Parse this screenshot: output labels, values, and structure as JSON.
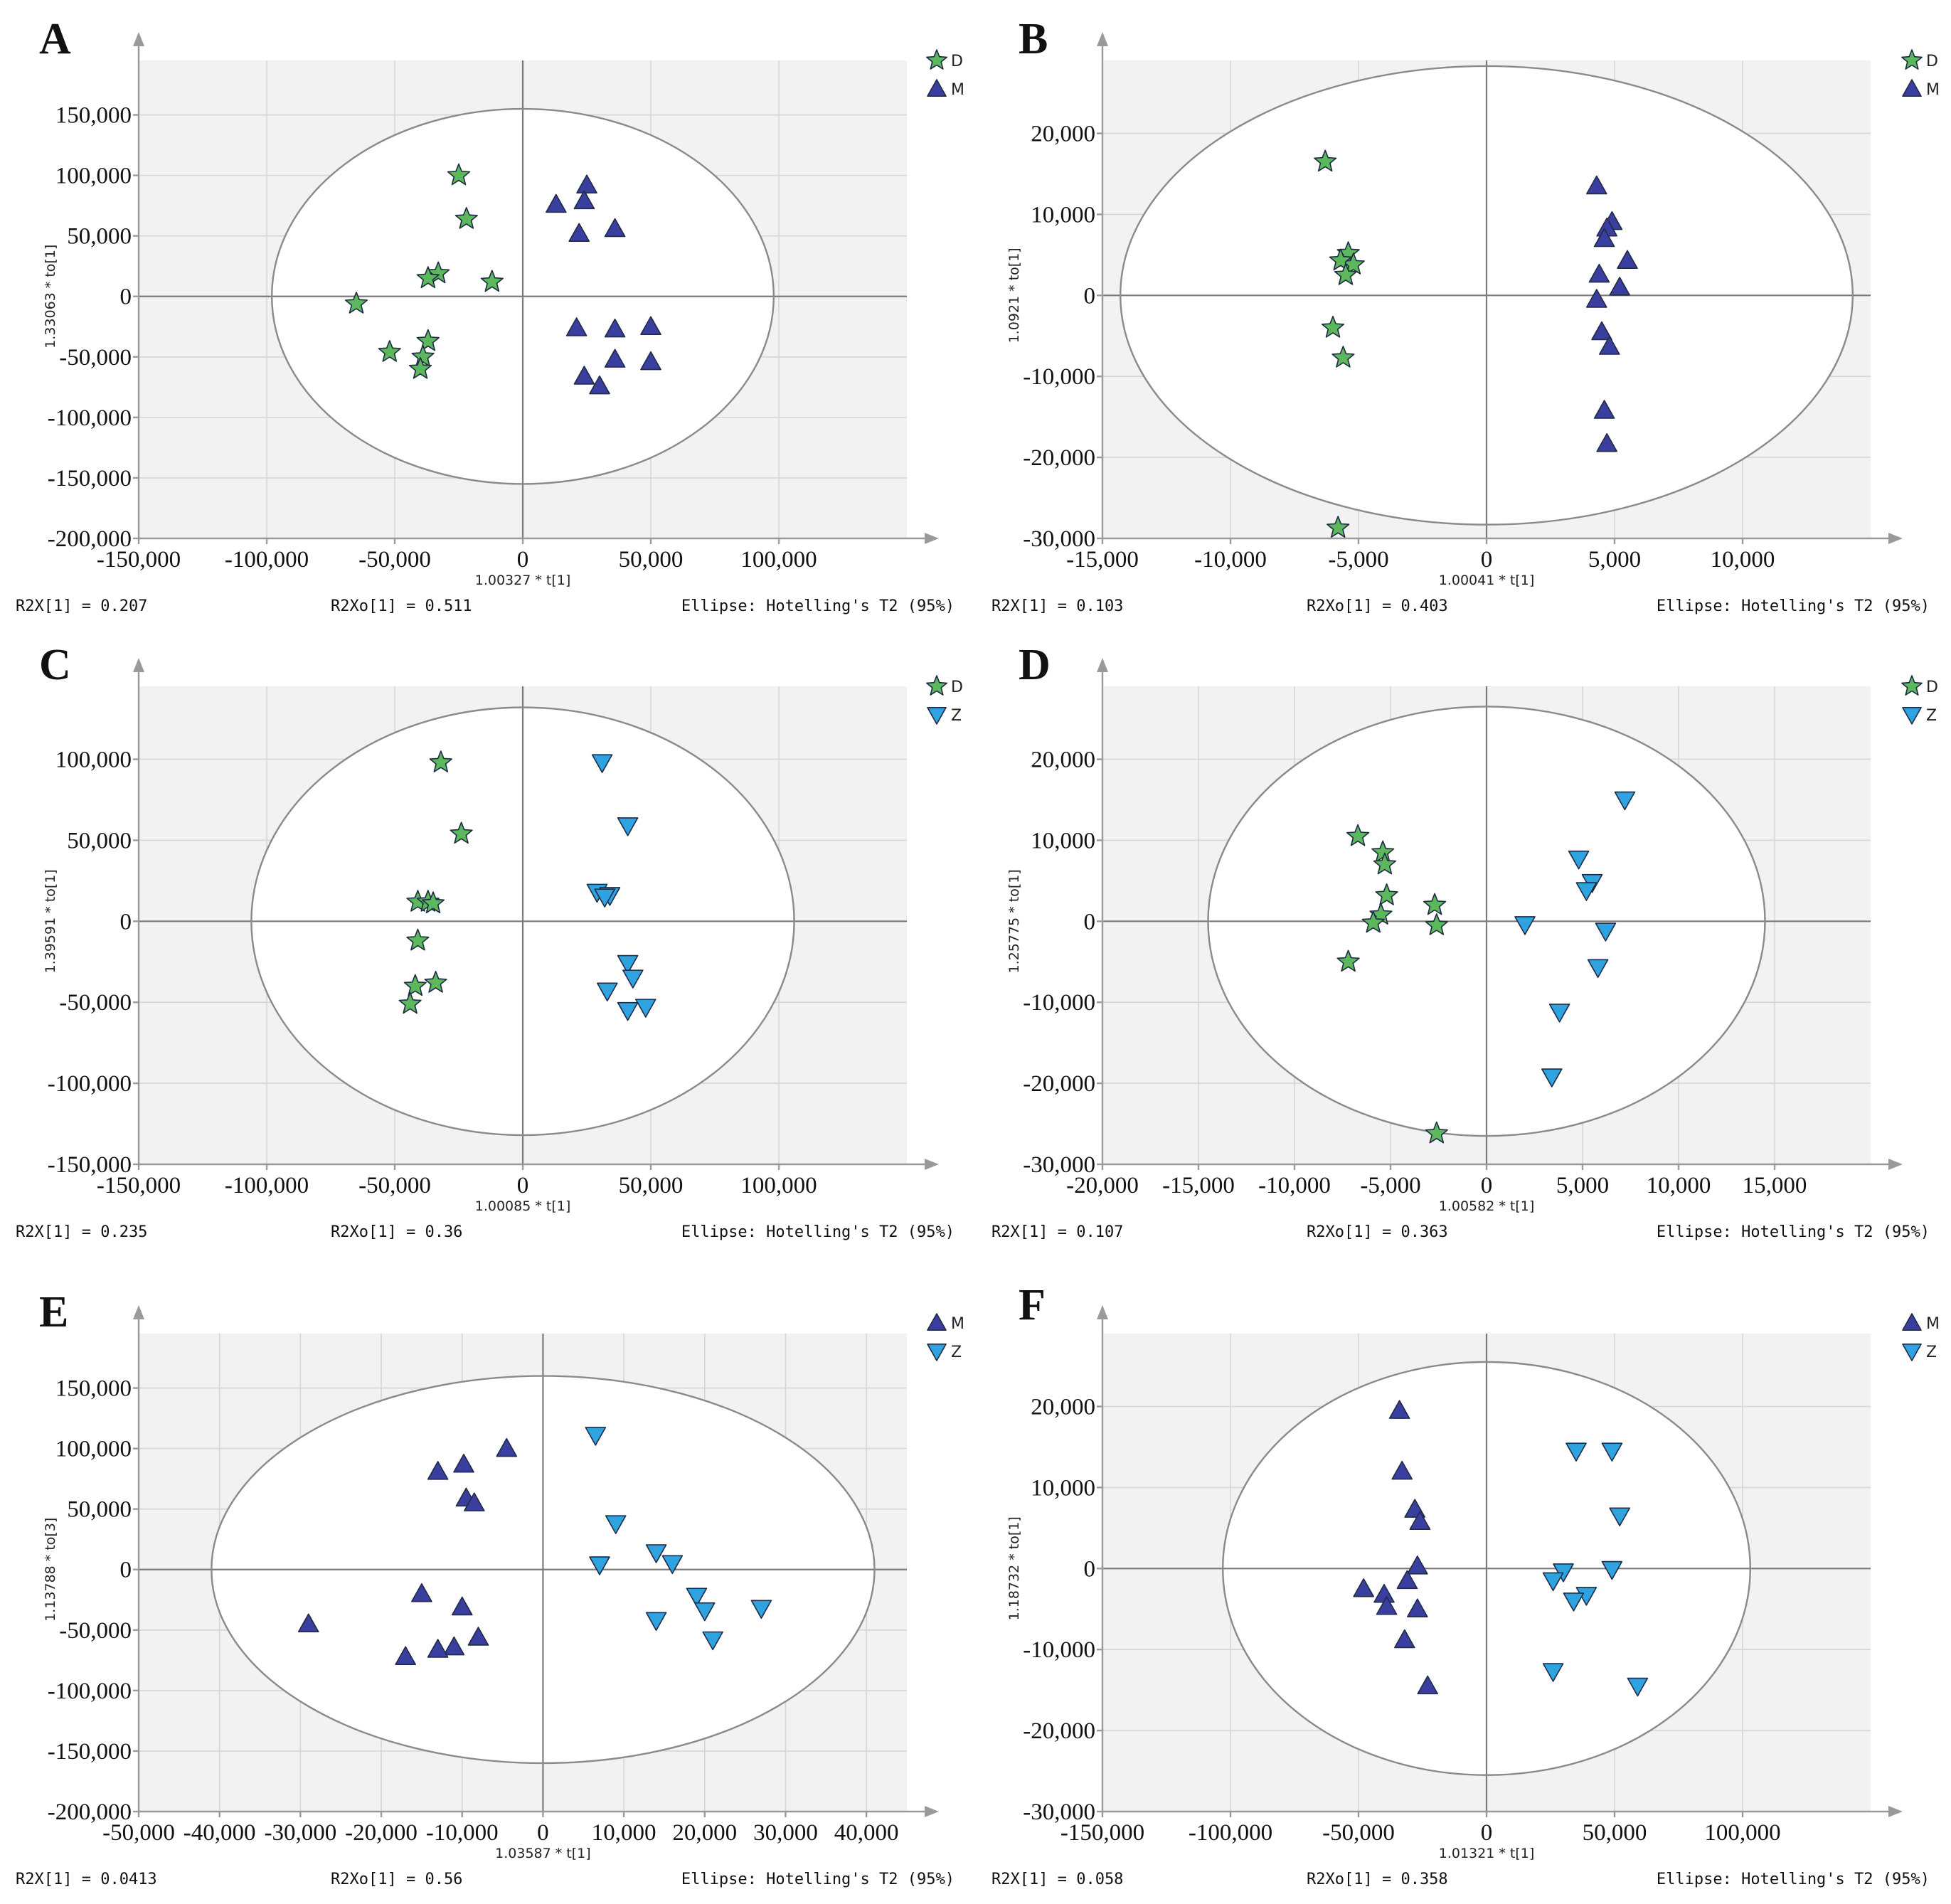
{
  "colors": {
    "D": "#5cb85c",
    "M": "#3a3f9f",
    "Z": "#2fa3e0"
  },
  "chart_data": [
    {
      "panel": "A",
      "type": "scatter",
      "xlabel": "1.00327 * t[1]",
      "ylabel": "1.33063 * to[1]",
      "xlim": [
        -150000,
        150000
      ],
      "ylim": [
        -200000,
        195000
      ],
      "xticks": [
        -150000,
        -100000,
        -50000,
        0,
        50000,
        100000
      ],
      "yticks": [
        -200000,
        -150000,
        -100000,
        -50000,
        0,
        50000,
        100000,
        150000
      ],
      "xtick_labels": [
        "-150,000",
        "-100,000",
        "-50,000",
        "0",
        "50,000",
        "100,000"
      ],
      "ytick_labels": [
        "-200,000",
        "-150,000",
        "-100,000",
        "-50,000",
        "0",
        "50,000",
        "100,000",
        "150,000"
      ],
      "ellipse": {
        "rx": 98000,
        "ry": 155000
      },
      "legend": [
        {
          "label": "D",
          "group": "D"
        },
        {
          "label": "M",
          "group": "M"
        }
      ],
      "series": [
        {
          "name": "D",
          "group": "D",
          "points": [
            [
              -25000,
              100000
            ],
            [
              -22000,
              64000
            ],
            [
              -33000,
              19000
            ],
            [
              -37000,
              15000
            ],
            [
              -12000,
              12000
            ],
            [
              -65000,
              -6000
            ],
            [
              -37000,
              -37000
            ],
            [
              -52000,
              -46000
            ],
            [
              -39000,
              -50000
            ],
            [
              -40000,
              -60000
            ]
          ]
        },
        {
          "name": "M",
          "group": "M",
          "points": [
            [
              25000,
              92000
            ],
            [
              24000,
              79000
            ],
            [
              13000,
              76000
            ],
            [
              36000,
              56000
            ],
            [
              22000,
              52000
            ],
            [
              21000,
              -26000
            ],
            [
              36000,
              -27000
            ],
            [
              50000,
              -25000
            ],
            [
              36000,
              -52000
            ],
            [
              50000,
              -54000
            ],
            [
              24000,
              -66000
            ],
            [
              30000,
              -74000
            ]
          ]
        }
      ],
      "footer": {
        "r2x": "R2X[1] = 0.207",
        "r2xo": "R2Xo[1] = 0.511",
        "ellipse": "Ellipse: Hotelling's T2 (95%)"
      }
    },
    {
      "panel": "B",
      "type": "scatter",
      "xlabel": "1.00041 * t[1]",
      "ylabel": "1.0921 * to[1]",
      "xlim": [
        -15000,
        15000
      ],
      "ylim": [
        -30000,
        29000
      ],
      "xticks": [
        -15000,
        -10000,
        -5000,
        0,
        5000,
        10000
      ],
      "yticks": [
        -30000,
        -20000,
        -10000,
        0,
        10000,
        20000
      ],
      "xtick_labels": [
        "-15,000",
        "-10,000",
        "-5,000",
        "0",
        "5,000",
        "10,000"
      ],
      "ytick_labels": [
        "-30,000",
        "-20,000",
        "-10,000",
        "0",
        "10,000",
        "20,000"
      ],
      "ellipse": {
        "rx": 14300,
        "ry": 28300
      },
      "legend": [
        {
          "label": "D",
          "group": "D"
        },
        {
          "label": "M",
          "group": "M"
        }
      ],
      "series": [
        {
          "name": "D",
          "group": "D",
          "points": [
            [
              -6300,
              16500
            ],
            [
              -5400,
              5200
            ],
            [
              -5200,
              3800
            ],
            [
              -5700,
              4300
            ],
            [
              -5500,
              2500
            ],
            [
              -6000,
              -4000
            ],
            [
              -5600,
              -7700
            ],
            [
              -5800,
              -28700
            ]
          ]
        },
        {
          "name": "M",
          "group": "M",
          "points": [
            [
              4300,
              13500
            ],
            [
              4900,
              9100
            ],
            [
              4700,
              8300
            ],
            [
              4600,
              7000
            ],
            [
              5500,
              4300
            ],
            [
              4400,
              2600
            ],
            [
              5200,
              1000
            ],
            [
              4300,
              -500
            ],
            [
              4500,
              -4500
            ],
            [
              4800,
              -6300
            ],
            [
              4600,
              -14200
            ],
            [
              4700,
              -18300
            ]
          ]
        }
      ],
      "footer": {
        "r2x": "R2X[1] = 0.103",
        "r2xo": "R2Xo[1] = 0.403",
        "ellipse": "Ellipse: Hotelling's T2 (95%)"
      }
    },
    {
      "panel": "C",
      "type": "scatter",
      "xlabel": "1.00085 * t[1]",
      "ylabel": "1.39591 * to[1]",
      "xlim": [
        -150000,
        150000
      ],
      "ylim": [
        -150000,
        145000
      ],
      "xticks": [
        -150000,
        -100000,
        -50000,
        0,
        50000,
        100000
      ],
      "yticks": [
        -150000,
        -100000,
        -50000,
        0,
        50000,
        100000
      ],
      "xtick_labels": [
        "-150,000",
        "-100,000",
        "-50,000",
        "0",
        "50,000",
        "100,000"
      ],
      "ytick_labels": [
        "-150,000",
        "-100,000",
        "-50,000",
        "0",
        "50,000",
        "100,000"
      ],
      "ellipse": {
        "rx": 106000,
        "ry": 132000
      },
      "legend": [
        {
          "label": "D",
          "group": "D"
        },
        {
          "label": "Z",
          "group": "Z"
        }
      ],
      "series": [
        {
          "name": "D",
          "group": "D",
          "points": [
            [
              -32000,
              98000
            ],
            [
              -24000,
              54000
            ],
            [
              -41000,
              12000
            ],
            [
              -37000,
              12000
            ],
            [
              -35000,
              11000
            ],
            [
              -41000,
              -12000
            ],
            [
              -34000,
              -38000
            ],
            [
              -42000,
              -40000
            ],
            [
              -44000,
              -51000
            ]
          ]
        },
        {
          "name": "Z",
          "group": "Z",
          "points": [
            [
              31000,
              98000
            ],
            [
              41000,
              59000
            ],
            [
              29000,
              18000
            ],
            [
              34000,
              16000
            ],
            [
              32000,
              15000
            ],
            [
              41000,
              -26000
            ],
            [
              43000,
              -35000
            ],
            [
              33000,
              -43000
            ],
            [
              48000,
              -53000
            ],
            [
              41000,
              -55000
            ]
          ]
        }
      ],
      "footer": {
        "r2x": "R2X[1] = 0.235",
        "r2xo": "R2Xo[1] = 0.36",
        "ellipse": "Ellipse: Hotelling's T2 (95%)"
      }
    },
    {
      "panel": "D",
      "type": "scatter",
      "xlabel": "1.00582 * t[1]",
      "ylabel": "1.25775 * to[1]",
      "xlim": [
        -20000,
        20000
      ],
      "ylim": [
        -30000,
        29000
      ],
      "xticks": [
        -20000,
        -15000,
        -10000,
        -5000,
        0,
        5000,
        10000,
        15000
      ],
      "yticks": [
        -30000,
        -20000,
        -10000,
        0,
        10000,
        20000
      ],
      "xtick_labels": [
        "-20,000",
        "-15,000",
        "-10,000",
        "-5,000",
        "0",
        "5,000",
        "10,000",
        "15,000"
      ],
      "ytick_labels": [
        "-30,000",
        "-20,000",
        "-10,000",
        "0",
        "10,000",
        "20,000"
      ],
      "ellipse": {
        "rx": 14500,
        "ry": 26500
      },
      "legend": [
        {
          "label": "D",
          "group": "D"
        },
        {
          "label": "Z",
          "group": "Z"
        }
      ],
      "series": [
        {
          "name": "D",
          "group": "D",
          "points": [
            [
              -6700,
              10500
            ],
            [
              -5400,
              8500
            ],
            [
              -5300,
              7000
            ],
            [
              -5200,
              3200
            ],
            [
              -2700,
              2000
            ],
            [
              -5500,
              800
            ],
            [
              -5900,
              -200
            ],
            [
              -2600,
              -500
            ],
            [
              -7200,
              -5000
            ],
            [
              -2600,
              -26200
            ]
          ]
        },
        {
          "name": "Z",
          "group": "Z",
          "points": [
            [
              7200,
              15000
            ],
            [
              4800,
              7700
            ],
            [
              5500,
              4800
            ],
            [
              5200,
              3800
            ],
            [
              2000,
              -400
            ],
            [
              6200,
              -1200
            ],
            [
              5800,
              -5700
            ],
            [
              3800,
              -11200
            ],
            [
              3400,
              -19200
            ]
          ]
        }
      ],
      "footer": {
        "r2x": "R2X[1] = 0.107",
        "r2xo": "R2Xo[1] = 0.363",
        "ellipse": "Ellipse: Hotelling's T2 (95%)"
      }
    },
    {
      "panel": "E",
      "type": "scatter",
      "xlabel": "1.03587 * t[1]",
      "ylabel": "1.13788 * to[3]",
      "xlim": [
        -50000,
        45000
      ],
      "ylim": [
        -200000,
        195000
      ],
      "xticks": [
        -50000,
        -40000,
        -30000,
        -20000,
        -10000,
        0,
        10000,
        20000,
        30000,
        40000
      ],
      "yticks": [
        -200000,
        -150000,
        -100000,
        -50000,
        0,
        50000,
        100000,
        150000
      ],
      "xtick_labels": [
        "-50,000",
        "-40,000",
        "-30,000",
        "-20,000",
        "-10,000",
        "0",
        "10,000",
        "20,000",
        "30,000",
        "40,000"
      ],
      "ytick_labels": [
        "-200,000",
        "-150,000",
        "-100,000",
        "-50,000",
        "0",
        "50,000",
        "100,000",
        "150,000"
      ],
      "ellipse": {
        "rx": 41000,
        "ry": 160000
      },
      "legend": [
        {
          "label": "M",
          "group": "M"
        },
        {
          "label": "Z",
          "group": "Z"
        }
      ],
      "series": [
        {
          "name": "M",
          "group": "M",
          "points": [
            [
              -4500,
              100000
            ],
            [
              -9800,
              87000
            ],
            [
              -13000,
              81000
            ],
            [
              -9500,
              59000
            ],
            [
              -8500,
              55000
            ],
            [
              -15000,
              -20000
            ],
            [
              -10000,
              -31000
            ],
            [
              -29000,
              -45000
            ],
            [
              -8000,
              -56000
            ],
            [
              -11000,
              -64000
            ],
            [
              -13000,
              -66000
            ],
            [
              -17000,
              -72000
            ]
          ]
        },
        {
          "name": "Z",
          "group": "Z",
          "points": [
            [
              6500,
              111000
            ],
            [
              9000,
              38000
            ],
            [
              14000,
              14000
            ],
            [
              16000,
              5000
            ],
            [
              7000,
              4000
            ],
            [
              19000,
              -22000
            ],
            [
              20000,
              -34000
            ],
            [
              27000,
              -32000
            ],
            [
              14000,
              -42000
            ],
            [
              21000,
              -58000
            ]
          ]
        }
      ],
      "footer": {
        "r2x": "R2X[1] = 0.0413",
        "r2xo": "R2Xo[1] = 0.56",
        "ellipse": "Ellipse: Hotelling's T2 (95%)"
      }
    },
    {
      "panel": "F",
      "type": "scatter",
      "xlabel": "1.01321 * t[1]",
      "ylabel": "1.18732 * to[1]",
      "xlim": [
        -150000,
        150000
      ],
      "ylim": [
        -30000,
        29000
      ],
      "xticks": [
        -150000,
        -100000,
        -50000,
        0,
        50000,
        100000
      ],
      "yticks": [
        -30000,
        -20000,
        -10000,
        0,
        10000,
        20000
      ],
      "xtick_labels": [
        "-150,000",
        "-100,000",
        "-50,000",
        "0",
        "50,000",
        "100,000"
      ],
      "ytick_labels": [
        "-30,000",
        "-20,000",
        "-10,000",
        "0",
        "10,000",
        "20,000"
      ],
      "ellipse": {
        "rx": 103000,
        "ry": 25500
      },
      "legend": [
        {
          "label": "M",
          "group": "M"
        },
        {
          "label": "Z",
          "group": "Z"
        }
      ],
      "series": [
        {
          "name": "M",
          "group": "M",
          "points": [
            [
              -34000,
              19500
            ],
            [
              -33000,
              12000
            ],
            [
              -28000,
              7300
            ],
            [
              -26000,
              5800
            ],
            [
              -27000,
              300
            ],
            [
              -31000,
              -1500
            ],
            [
              -48000,
              -2500
            ],
            [
              -40000,
              -3200
            ],
            [
              -39000,
              -4700
            ],
            [
              -27000,
              -5000
            ],
            [
              -32000,
              -8800
            ],
            [
              -23000,
              -14500
            ]
          ]
        },
        {
          "name": "Z",
          "group": "Z",
          "points": [
            [
              35000,
              14500
            ],
            [
              49000,
              14500
            ],
            [
              52000,
              6500
            ],
            [
              49000,
              -100
            ],
            [
              30000,
              -400
            ],
            [
              26000,
              -1500
            ],
            [
              39000,
              -3300
            ],
            [
              34000,
              -4000
            ],
            [
              26000,
              -12700
            ],
            [
              59000,
              -14500
            ]
          ]
        }
      ],
      "footer": {
        "r2x": "R2X[1] = 0.058",
        "r2xo": "R2Xo[1] = 0.358",
        "ellipse": "Ellipse: Hotelling's T2 (95%)"
      }
    }
  ]
}
